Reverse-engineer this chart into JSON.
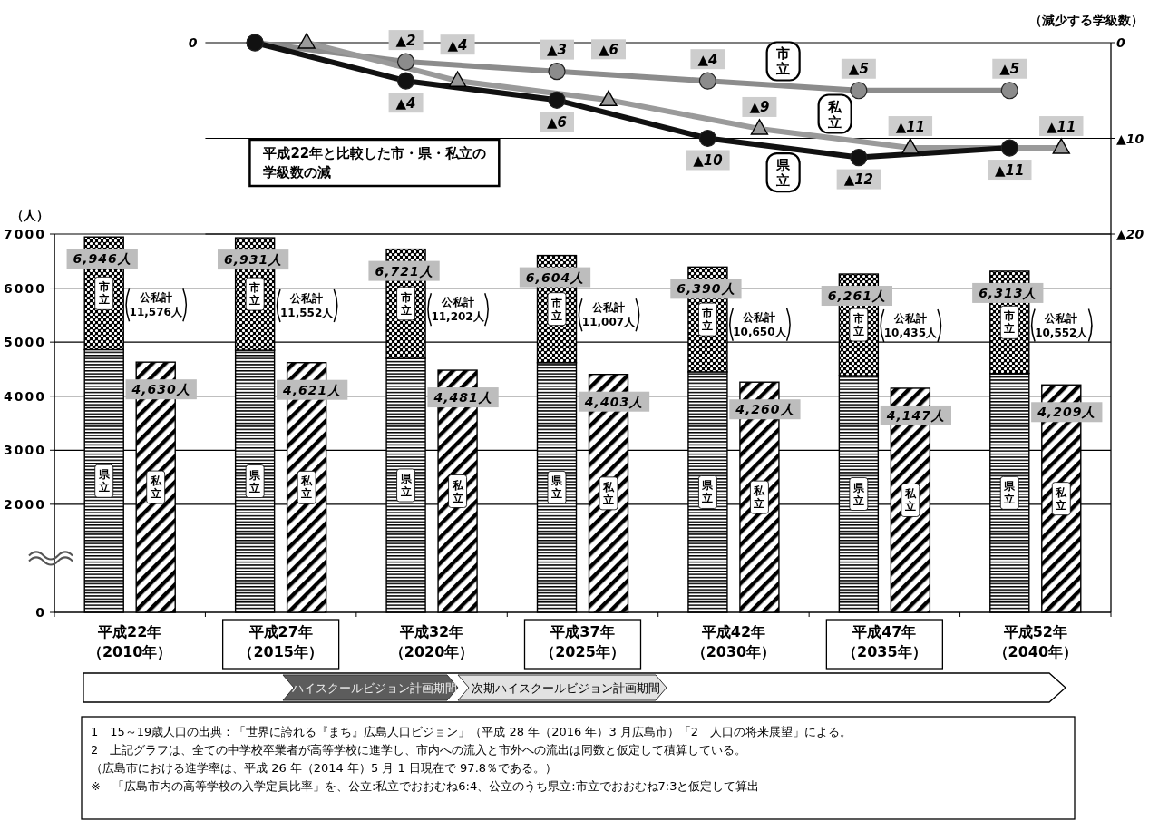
{
  "chart_data": [
    {
      "type": "line",
      "title": "平成22年と比較した市・県・私立の学級数の減",
      "ylabel": "（減少する学級数）",
      "categories": [
        null,
        null,
        null,
        null,
        null,
        null
      ],
      "series": [
        {
          "name": "市立",
          "color": "#8c8c8c",
          "marker": "circle",
          "values": [
            0,
            2,
            3,
            4,
            5,
            5
          ],
          "value_labels": [
            null,
            "▲2",
            "▲3",
            "▲4",
            "▲5",
            "▲5"
          ]
        },
        {
          "name": "私立",
          "color": "#9a9a9a",
          "marker": "triangle",
          "values": [
            0,
            4,
            6,
            9,
            11,
            11
          ],
          "value_labels": [
            null,
            "▲4",
            "▲6",
            "▲9",
            "▲11",
            "▲11"
          ]
        },
        {
          "name": "県立",
          "color": "#111111",
          "marker": "circle",
          "values": [
            0,
            4,
            6,
            10,
            12,
            11
          ],
          "value_labels": [
            null,
            "▲4",
            "▲6",
            "▲10",
            "▲12",
            "▲11"
          ]
        }
      ],
      "ylim": [
        20,
        0
      ],
      "yticks": [
        0,
        {
          "value": 10,
          "label": "▲10"
        },
        {
          "value": 20,
          "label": "▲20"
        }
      ],
      "grid": "y",
      "annotations": [
        "0"
      ]
    },
    {
      "type": "bar",
      "stacked": true,
      "ylabel": "（人）",
      "categories": [
        "平成22年（2010年）",
        "平成27年（2015年）",
        "平成32年（2020年）",
        "平成37年（2025年）",
        "平成42年（2030年）",
        "平成47年（2035年）",
        "平成52年（2040年）"
      ],
      "series": [
        {
          "name": "県立",
          "color": "#000000",
          "values": [
            4860,
            4850,
            4700,
            4620,
            4450,
            4380,
            4420
          ]
        },
        {
          "name": "市立",
          "color": "#000000",
          "values": [
            2086,
            2081,
            2021,
            1984,
            1940,
            1881,
            1893
          ]
        }
      ],
      "totals": [
        "6,946人",
        "6,931人",
        "6,721人",
        "6,604人",
        "6,390人",
        "6,261人",
        "6,313人"
      ],
      "ylim": [
        0,
        7000
      ],
      "yticks": [
        0,
        2000,
        3000,
        4000,
        5000,
        6000,
        7000
      ],
      "grid": "y",
      "annotations": [
        "公私計11,576人",
        "公私計11,552人",
        "公私計11,202人",
        "公私計11,007人",
        "公私計10,650人",
        "公私計10,435人",
        "公私計10,552人",
        "ハイスクールビジョン計画期間",
        "次期ハイスクールビジョン計画期間",
        "1　15～19歳人口の出典：「世界に誇れる『まち』広島人口ビジョン」（平成 28 年（2016 年）3 月広島市）「2　人口の将来展望」による。",
        "2　上記グラフは、全ての中学校卒業者が高等学校に進学し、市内への流入と市外への流出は同数と仮定して積算している。",
        "（広島市における進学率は、平成 26 年（2014 年）5 月 1 日現在で 97.8％である。）",
        "※　「広島市内の高等学校の入学定員比率」を、公立:私立でおおむね6:4、公立のうち県立:市立でおおむね7:3と仮定して算出"
      ]
    },
    {
      "type": "bar",
      "categories": [
        null,
        null,
        null,
        null,
        null,
        null,
        null
      ],
      "series": [
        {
          "name": "私立",
          "color": "#000000",
          "values": [
            4630,
            4621,
            4481,
            4403,
            4260,
            4147,
            4209
          ],
          "value_labels": [
            "4,630人",
            "4,621人",
            "4,481人",
            "4,403人",
            "4,260人",
            "4,147人",
            "4,209人"
          ]
        }
      ],
      "ylim": [
        0,
        7000
      ]
    }
  ]
}
